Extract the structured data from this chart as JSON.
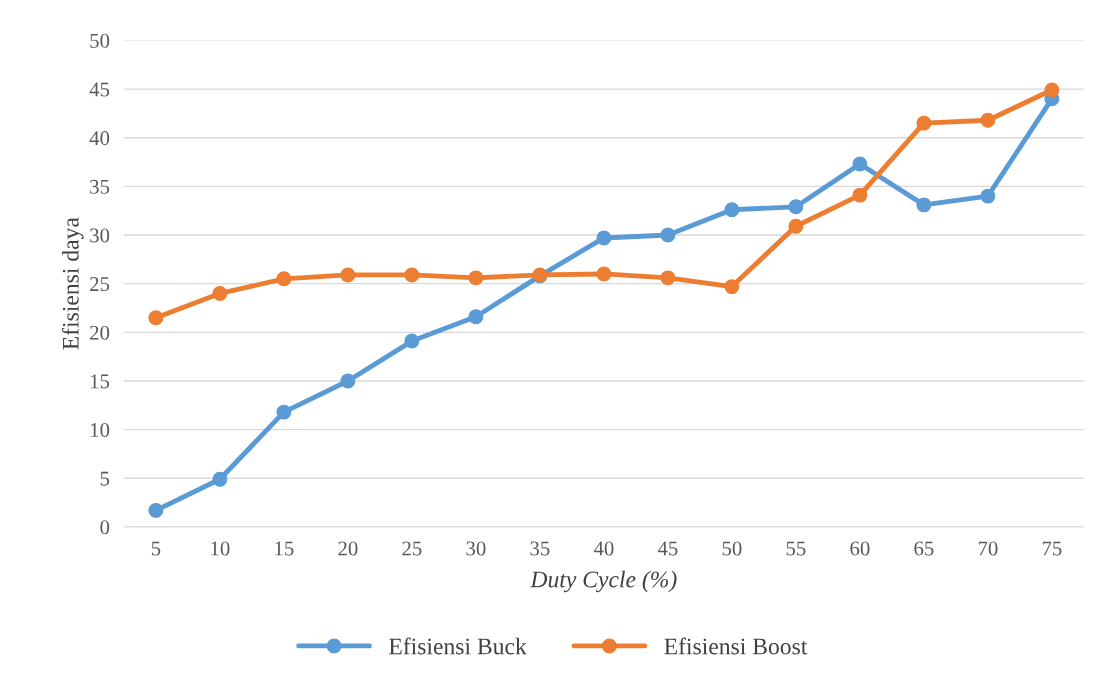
{
  "chart_data": {
    "type": "line",
    "xlabel": "Duty Cycle (%)",
    "ylabel": "Efisiensi daya",
    "categories": [
      "5",
      "10",
      "15",
      "20",
      "25",
      "30",
      "35",
      "40",
      "45",
      "50",
      "55",
      "60",
      "65",
      "70",
      "75"
    ],
    "series": [
      {
        "name": "Efisiensi Buck",
        "color": "#5b9bd5",
        "values": [
          1.7,
          4.9,
          11.8,
          15.0,
          19.1,
          21.6,
          25.8,
          29.7,
          30.0,
          32.6,
          32.9,
          37.3,
          33.1,
          34.0,
          44.0
        ]
      },
      {
        "name": "Efisiensi Boost",
        "color": "#ed7d31",
        "values": [
          21.5,
          24.0,
          25.5,
          25.9,
          25.9,
          25.6,
          25.9,
          26.0,
          25.6,
          24.7,
          30.9,
          34.1,
          41.5,
          41.8,
          44.9
        ]
      }
    ],
    "ylim": [
      0,
      50
    ],
    "yticks": [
      0,
      5,
      10,
      15,
      20,
      25,
      30,
      35,
      40,
      45,
      50
    ],
    "grid": "y",
    "legend": "bottom",
    "marker": "circle",
    "line_style": "solid"
  }
}
